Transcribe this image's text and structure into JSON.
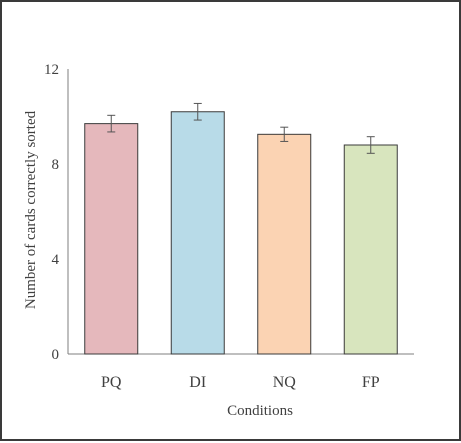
{
  "chart_data": {
    "type": "bar",
    "title": "",
    "xlabel": "Conditions",
    "ylabel": "Number of cards correctly sorted",
    "categories": [
      "PQ",
      "DI",
      "NQ",
      "FP"
    ],
    "values": [
      9.7,
      10.2,
      9.25,
      8.8
    ],
    "errors": [
      0.35,
      0.35,
      0.3,
      0.35
    ],
    "ylim": [
      0,
      12
    ],
    "yticks": [
      0,
      4,
      8,
      12
    ],
    "ytick_labels": [
      "0",
      "4",
      "8",
      "12"
    ],
    "grid": false,
    "legend": "none",
    "colors": {
      "bars": [
        "#e5b8bc",
        "#b8dbe8",
        "#fbd3b3",
        "#d8e5be"
      ],
      "bar_edge": "#3a3a3a",
      "axis": "#7f7f7f",
      "error_bars": "#555555"
    }
  }
}
